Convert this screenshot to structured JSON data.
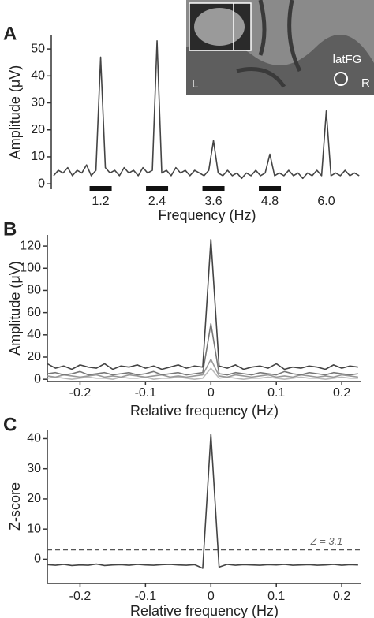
{
  "panel_labels": [
    "A",
    "B",
    "C"
  ],
  "inset": {
    "label": "latFG",
    "left": "L",
    "right": "R"
  },
  "chart_data": [
    {
      "type": "line",
      "x_label": "Frequency (Hz)",
      "y_label": "Amplitude (μV)",
      "color": "#444444",
      "x": [
        0.2,
        0.3,
        0.4,
        0.5,
        0.6,
        0.7,
        0.8,
        0.9,
        1.0,
        1.1,
        1.2,
        1.3,
        1.4,
        1.5,
        1.6,
        1.7,
        1.8,
        1.9,
        2.0,
        2.1,
        2.2,
        2.3,
        2.4,
        2.5,
        2.6,
        2.7,
        2.8,
        2.9,
        3.0,
        3.1,
        3.2,
        3.3,
        3.4,
        3.5,
        3.6,
        3.7,
        3.8,
        3.9,
        4.0,
        4.1,
        4.2,
        4.3,
        4.4,
        4.5,
        4.6,
        4.7,
        4.8,
        4.9,
        5.0,
        5.1,
        5.2,
        5.3,
        5.4,
        5.5,
        5.6,
        5.7,
        5.8,
        5.9,
        6.0,
        6.1,
        6.2,
        6.3,
        6.4,
        6.5,
        6.6,
        6.7
      ],
      "values": [
        3,
        5,
        4,
        6,
        3,
        5,
        4,
        7,
        3,
        5,
        47,
        6,
        4,
        5,
        3,
        6,
        4,
        5,
        3,
        6,
        4,
        5,
        53,
        4,
        5,
        3,
        6,
        4,
        5,
        3,
        5,
        4,
        3,
        5,
        16,
        4,
        3,
        5,
        3,
        4,
        2,
        4,
        3,
        5,
        3,
        4,
        11,
        3,
        4,
        3,
        5,
        3,
        4,
        2,
        4,
        3,
        5,
        3,
        27,
        3,
        4,
        3,
        5,
        3,
        4,
        3
      ],
      "xlim": [
        0.15,
        6.78
      ],
      "xticks": [
        1.2,
        2.4,
        3.6,
        4.8,
        {
          "value": 6,
          "label": "6.0"
        }
      ],
      "ylim": [
        -2,
        55
      ],
      "yticks": [
        0,
        10,
        20,
        30,
        40,
        50
      ]
    },
    {
      "type": "line",
      "x_label": "Relative frequency (Hz)",
      "y_label": "Amplitude (μV)",
      "x": [
        -0.25,
        -0.2375,
        -0.225,
        -0.2125,
        -0.2,
        -0.1875,
        -0.175,
        -0.1625,
        -0.15,
        -0.1375,
        -0.125,
        -0.1125,
        -0.1,
        -0.0875,
        -0.075,
        -0.0625,
        -0.05,
        -0.0375,
        -0.025,
        -0.0125,
        0,
        0.0125,
        0.025,
        0.0375,
        0.05,
        0.0625,
        0.075,
        0.0875,
        0.1,
        0.1125,
        0.125,
        0.1375,
        0.15,
        0.1625,
        0.175,
        0.1875,
        0.2,
        0.2125,
        0.225
      ],
      "series": [
        {
          "color": "#bbbbbb",
          "values": [
            1,
            2,
            1,
            0,
            1,
            2,
            1,
            1,
            0,
            2,
            1,
            1,
            2,
            0,
            1,
            1,
            2,
            1,
            0,
            1,
            10,
            1,
            2,
            1,
            0,
            1,
            1,
            2,
            1,
            0,
            1,
            2,
            1,
            1,
            0,
            1,
            2,
            1,
            1
          ]
        },
        {
          "color": "#999999",
          "values": [
            3,
            2,
            4,
            3,
            2,
            3,
            4,
            2,
            3,
            2,
            4,
            3,
            2,
            3,
            4,
            2,
            3,
            2,
            3,
            4,
            18,
            3,
            2,
            4,
            3,
            2,
            3,
            4,
            2,
            3,
            2,
            4,
            3,
            2,
            3,
            2,
            4,
            3,
            2
          ]
        },
        {
          "color": "#777777",
          "values": [
            5,
            6,
            4,
            5,
            7,
            4,
            5,
            6,
            4,
            5,
            6,
            4,
            5,
            7,
            4,
            5,
            6,
            4,
            5,
            6,
            50,
            5,
            4,
            6,
            5,
            4,
            6,
            5,
            4,
            7,
            5,
            4,
            6,
            5,
            4,
            6,
            5,
            4,
            5
          ]
        },
        {
          "color": "#444444",
          "values": [
            14,
            10,
            12,
            9,
            13,
            11,
            10,
            14,
            9,
            12,
            11,
            13,
            10,
            12,
            9,
            11,
            13,
            10,
            12,
            11,
            126,
            12,
            10,
            13,
            9,
            11,
            12,
            10,
            14,
            9,
            11,
            10,
            12,
            11,
            9,
            13,
            10,
            12,
            11
          ]
        }
      ],
      "xlim": [
        -0.25,
        0.23
      ],
      "xticks": [
        -0.2,
        -0.1,
        0,
        0.1,
        0.2
      ],
      "ylim": [
        -2,
        130
      ],
      "yticks": [
        0,
        20,
        40,
        60,
        80,
        100,
        120
      ]
    },
    {
      "type": "line",
      "x_label": "Relative frequency (Hz)",
      "y_label": "Z-score",
      "color": "#444444",
      "x": [
        -0.25,
        -0.2375,
        -0.225,
        -0.2125,
        -0.2,
        -0.1875,
        -0.175,
        -0.1625,
        -0.15,
        -0.1375,
        -0.125,
        -0.1125,
        -0.1,
        -0.0875,
        -0.075,
        -0.0625,
        -0.05,
        -0.0375,
        -0.025,
        -0.0125,
        0,
        0.0125,
        0.025,
        0.0375,
        0.05,
        0.0625,
        0.075,
        0.0875,
        0.1,
        0.1125,
        0.125,
        0.1375,
        0.15,
        0.1625,
        0.175,
        0.1875,
        0.2,
        0.2125,
        0.225
      ],
      "values": [
        -1.8,
        -2.0,
        -1.7,
        -2.1,
        -1.9,
        -2.0,
        -1.6,
        -2.1,
        -1.9,
        -1.8,
        -2.0,
        -1.7,
        -1.9,
        -2.0,
        -1.8,
        -1.7,
        -1.9,
        -2.0,
        -1.8,
        -3.0,
        41.5,
        -2.6,
        -1.7,
        -2.0,
        -1.8,
        -1.9,
        -2.0,
        -1.8,
        -1.9,
        -1.7,
        -2.0,
        -1.9,
        -1.8,
        -2.0,
        -1.9,
        -1.7,
        -2.0,
        -1.8,
        -1.9
      ],
      "hline": {
        "value": 3.1,
        "label": "Z = 3.1"
      },
      "xlim": [
        -0.25,
        0.23
      ],
      "xticks": [
        -0.2,
        -0.1,
        0,
        0.1,
        0.2
      ],
      "ylim": [
        -8,
        43
      ],
      "yticks": [
        0,
        10,
        20,
        30,
        40
      ]
    }
  ]
}
